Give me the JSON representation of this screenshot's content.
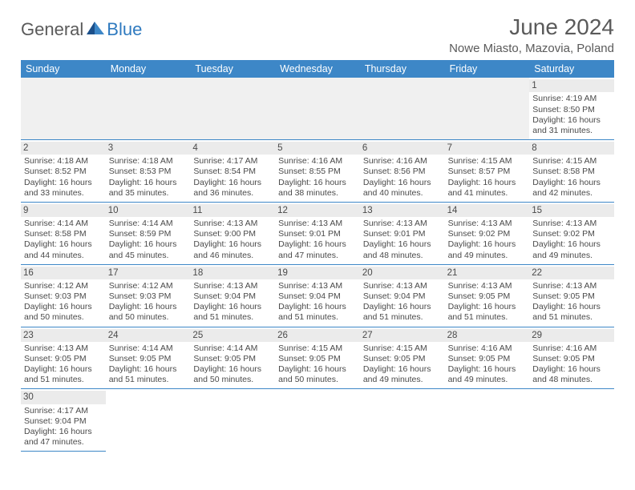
{
  "logo": {
    "part1": "General",
    "part2": "Blue"
  },
  "title": "June 2024",
  "location": "Nowe Miasto, Mazovia, Poland",
  "colors": {
    "header_bg": "#3d87c7",
    "header_text": "#ffffff",
    "daynum_bg": "#ebebeb",
    "border": "#3d87c7",
    "logo_blue": "#2f7abf",
    "text": "#4a4a4a"
  },
  "weekdays": [
    "Sunday",
    "Monday",
    "Tuesday",
    "Wednesday",
    "Thursday",
    "Friday",
    "Saturday"
  ],
  "leading_blanks": 6,
  "days": [
    {
      "n": "1",
      "sunrise": "4:19 AM",
      "sunset": "8:50 PM",
      "daylight": "16 hours and 31 minutes."
    },
    {
      "n": "2",
      "sunrise": "4:18 AM",
      "sunset": "8:52 PM",
      "daylight": "16 hours and 33 minutes."
    },
    {
      "n": "3",
      "sunrise": "4:18 AM",
      "sunset": "8:53 PM",
      "daylight": "16 hours and 35 minutes."
    },
    {
      "n": "4",
      "sunrise": "4:17 AM",
      "sunset": "8:54 PM",
      "daylight": "16 hours and 36 minutes."
    },
    {
      "n": "5",
      "sunrise": "4:16 AM",
      "sunset": "8:55 PM",
      "daylight": "16 hours and 38 minutes."
    },
    {
      "n": "6",
      "sunrise": "4:16 AM",
      "sunset": "8:56 PM",
      "daylight": "16 hours and 40 minutes."
    },
    {
      "n": "7",
      "sunrise": "4:15 AM",
      "sunset": "8:57 PM",
      "daylight": "16 hours and 41 minutes."
    },
    {
      "n": "8",
      "sunrise": "4:15 AM",
      "sunset": "8:58 PM",
      "daylight": "16 hours and 42 minutes."
    },
    {
      "n": "9",
      "sunrise": "4:14 AM",
      "sunset": "8:58 PM",
      "daylight": "16 hours and 44 minutes."
    },
    {
      "n": "10",
      "sunrise": "4:14 AM",
      "sunset": "8:59 PM",
      "daylight": "16 hours and 45 minutes."
    },
    {
      "n": "11",
      "sunrise": "4:13 AM",
      "sunset": "9:00 PM",
      "daylight": "16 hours and 46 minutes."
    },
    {
      "n": "12",
      "sunrise": "4:13 AM",
      "sunset": "9:01 PM",
      "daylight": "16 hours and 47 minutes."
    },
    {
      "n": "13",
      "sunrise": "4:13 AM",
      "sunset": "9:01 PM",
      "daylight": "16 hours and 48 minutes."
    },
    {
      "n": "14",
      "sunrise": "4:13 AM",
      "sunset": "9:02 PM",
      "daylight": "16 hours and 49 minutes."
    },
    {
      "n": "15",
      "sunrise": "4:13 AM",
      "sunset": "9:02 PM",
      "daylight": "16 hours and 49 minutes."
    },
    {
      "n": "16",
      "sunrise": "4:12 AM",
      "sunset": "9:03 PM",
      "daylight": "16 hours and 50 minutes."
    },
    {
      "n": "17",
      "sunrise": "4:12 AM",
      "sunset": "9:03 PM",
      "daylight": "16 hours and 50 minutes."
    },
    {
      "n": "18",
      "sunrise": "4:13 AM",
      "sunset": "9:04 PM",
      "daylight": "16 hours and 51 minutes."
    },
    {
      "n": "19",
      "sunrise": "4:13 AM",
      "sunset": "9:04 PM",
      "daylight": "16 hours and 51 minutes."
    },
    {
      "n": "20",
      "sunrise": "4:13 AM",
      "sunset": "9:04 PM",
      "daylight": "16 hours and 51 minutes."
    },
    {
      "n": "21",
      "sunrise": "4:13 AM",
      "sunset": "9:05 PM",
      "daylight": "16 hours and 51 minutes."
    },
    {
      "n": "22",
      "sunrise": "4:13 AM",
      "sunset": "9:05 PM",
      "daylight": "16 hours and 51 minutes."
    },
    {
      "n": "23",
      "sunrise": "4:13 AM",
      "sunset": "9:05 PM",
      "daylight": "16 hours and 51 minutes."
    },
    {
      "n": "24",
      "sunrise": "4:14 AM",
      "sunset": "9:05 PM",
      "daylight": "16 hours and 51 minutes."
    },
    {
      "n": "25",
      "sunrise": "4:14 AM",
      "sunset": "9:05 PM",
      "daylight": "16 hours and 50 minutes."
    },
    {
      "n": "26",
      "sunrise": "4:15 AM",
      "sunset": "9:05 PM",
      "daylight": "16 hours and 50 minutes."
    },
    {
      "n": "27",
      "sunrise": "4:15 AM",
      "sunset": "9:05 PM",
      "daylight": "16 hours and 49 minutes."
    },
    {
      "n": "28",
      "sunrise": "4:16 AM",
      "sunset": "9:05 PM",
      "daylight": "16 hours and 49 minutes."
    },
    {
      "n": "29",
      "sunrise": "4:16 AM",
      "sunset": "9:05 PM",
      "daylight": "16 hours and 48 minutes."
    },
    {
      "n": "30",
      "sunrise": "4:17 AM",
      "sunset": "9:04 PM",
      "daylight": "16 hours and 47 minutes."
    }
  ],
  "labels": {
    "sunrise": "Sunrise: ",
    "sunset": "Sunset: ",
    "daylight": "Daylight: "
  }
}
